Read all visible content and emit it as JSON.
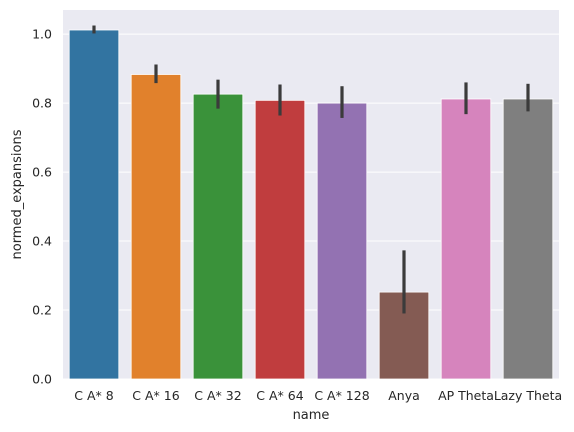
{
  "chart_data": {
    "type": "bar",
    "xlabel": "name",
    "ylabel": "normed_expansions",
    "categories": [
      "C A* 8",
      "C A* 16",
      "C A* 32",
      "C A* 64",
      "C A* 128",
      "Anya",
      "AP Theta",
      "Lazy Theta"
    ],
    "values": [
      1.012,
      0.883,
      0.826,
      0.808,
      0.8,
      0.252,
      0.812,
      0.812
    ],
    "error_bars": [
      [
        1.002,
        1.025
      ],
      [
        0.858,
        0.912
      ],
      [
        0.784,
        0.868
      ],
      [
        0.764,
        0.854
      ],
      [
        0.757,
        0.849
      ],
      [
        0.19,
        0.373
      ],
      [
        0.768,
        0.86
      ],
      [
        0.776,
        0.856
      ]
    ],
    "colors": [
      "#3274a1",
      "#e1812c",
      "#3a923a",
      "#c03d3e",
      "#9372b2",
      "#845b53",
      "#d684bd",
      "#7f7f7f"
    ],
    "error_color": "#3b3b3b",
    "ylim": [
      0,
      1.07
    ],
    "yticks": [
      0.0,
      0.2,
      0.4,
      0.6,
      0.8,
      1.0
    ],
    "ytick_labels": [
      "0.0",
      "0.2",
      "0.4",
      "0.6",
      "0.8",
      "1.0"
    ],
    "grid": true,
    "background": "#eaeaf2",
    "grid_color": "#ffffff"
  }
}
